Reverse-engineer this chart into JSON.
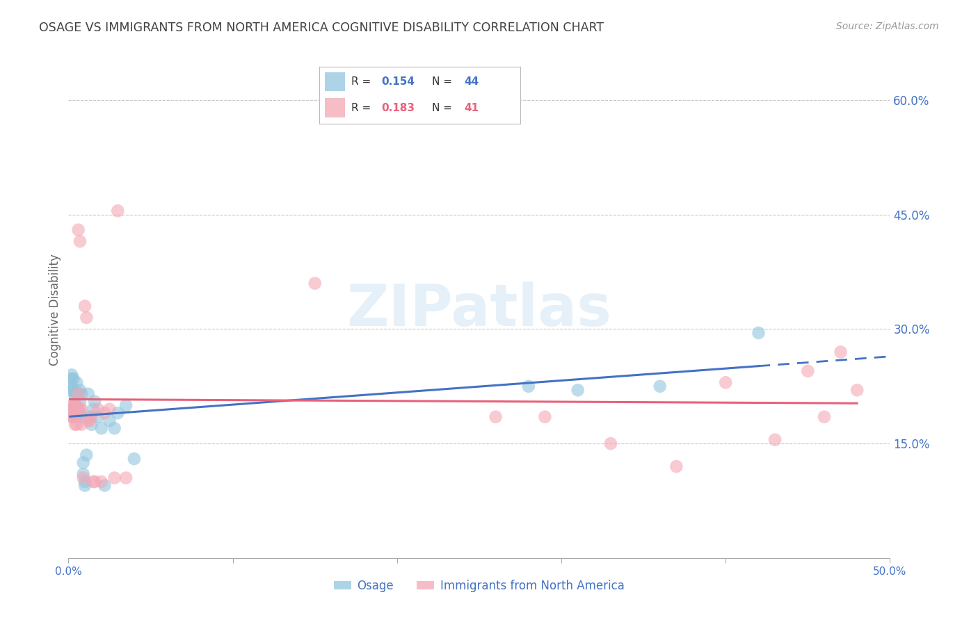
{
  "title": "OSAGE VS IMMIGRANTS FROM NORTH AMERICA COGNITIVE DISABILITY CORRELATION CHART",
  "source": "Source: ZipAtlas.com",
  "ylabel": "Cognitive Disability",
  "xlim": [
    0.0,
    0.5
  ],
  "ylim": [
    0.0,
    0.65
  ],
  "legend_blue_r": "0.154",
  "legend_blue_n": "44",
  "legend_pink_r": "0.183",
  "legend_pink_n": "41",
  "legend_label_blue": "Osage",
  "legend_label_pink": "Immigrants from North America",
  "watermark": "ZIPatlas",
  "blue_color": "#92c5de",
  "pink_color": "#f4a7b5",
  "trendline_blue_color": "#4472c4",
  "trendline_pink_color": "#e8617a",
  "background_color": "#ffffff",
  "grid_color": "#c8c8c8",
  "axis_label_color": "#4472c4",
  "title_color": "#404040",
  "osage_x": [
    0.001,
    0.002,
    0.002,
    0.002,
    0.003,
    0.003,
    0.003,
    0.003,
    0.004,
    0.004,
    0.004,
    0.004,
    0.005,
    0.005,
    0.005,
    0.006,
    0.006,
    0.007,
    0.007,
    0.007,
    0.008,
    0.008,
    0.009,
    0.009,
    0.01,
    0.01,
    0.011,
    0.012,
    0.013,
    0.014,
    0.015,
    0.016,
    0.018,
    0.02,
    0.022,
    0.025,
    0.028,
    0.03,
    0.035,
    0.04,
    0.28,
    0.31,
    0.36,
    0.42
  ],
  "osage_y": [
    0.22,
    0.24,
    0.235,
    0.225,
    0.235,
    0.22,
    0.195,
    0.185,
    0.215,
    0.21,
    0.2,
    0.195,
    0.23,
    0.195,
    0.185,
    0.215,
    0.195,
    0.22,
    0.205,
    0.19,
    0.215,
    0.185,
    0.125,
    0.11,
    0.1,
    0.095,
    0.135,
    0.215,
    0.185,
    0.175,
    0.195,
    0.205,
    0.185,
    0.17,
    0.095,
    0.18,
    0.17,
    0.19,
    0.2,
    0.13,
    0.225,
    0.22,
    0.225,
    0.295
  ],
  "immigrant_x": [
    0.001,
    0.002,
    0.002,
    0.003,
    0.003,
    0.004,
    0.004,
    0.005,
    0.005,
    0.006,
    0.006,
    0.007,
    0.007,
    0.008,
    0.008,
    0.009,
    0.01,
    0.011,
    0.012,
    0.013,
    0.014,
    0.015,
    0.016,
    0.018,
    0.02,
    0.022,
    0.025,
    0.028,
    0.03,
    0.035,
    0.15,
    0.26,
    0.29,
    0.33,
    0.37,
    0.4,
    0.43,
    0.45,
    0.46,
    0.47,
    0.48
  ],
  "immigrant_y": [
    0.195,
    0.2,
    0.185,
    0.2,
    0.185,
    0.195,
    0.175,
    0.2,
    0.175,
    0.215,
    0.43,
    0.415,
    0.195,
    0.195,
    0.175,
    0.105,
    0.33,
    0.315,
    0.18,
    0.18,
    0.185,
    0.1,
    0.1,
    0.195,
    0.1,
    0.19,
    0.195,
    0.105,
    0.455,
    0.105,
    0.36,
    0.185,
    0.185,
    0.15,
    0.12,
    0.23,
    0.155,
    0.245,
    0.185,
    0.27,
    0.22
  ],
  "blue_trendline_x": [
    0.001,
    0.42
  ],
  "blue_trendline_solid_end": 0.42,
  "blue_trendline_dash_start": 0.42,
  "blue_trendline_dash_end": 0.5,
  "pink_trendline_x": [
    0.001,
    0.48
  ]
}
